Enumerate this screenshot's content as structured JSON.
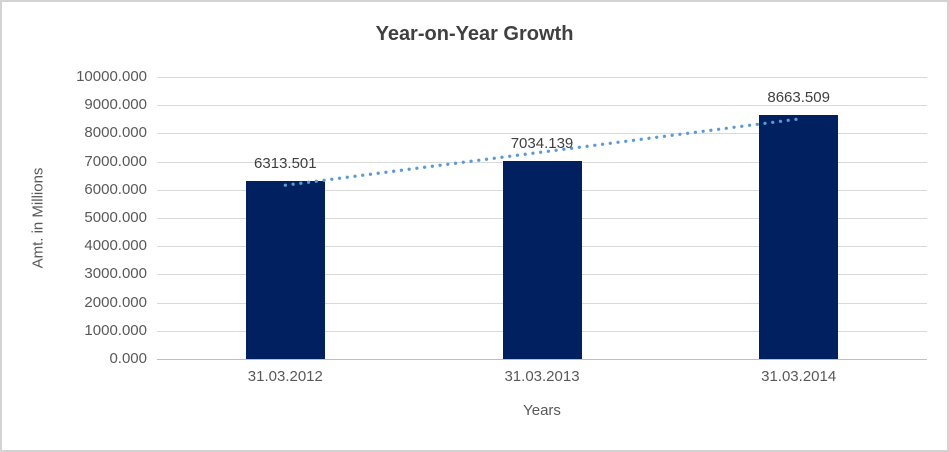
{
  "chart_data": {
    "type": "bar",
    "title": "Year-on-Year Growth",
    "xlabel": "Years",
    "ylabel": "Amt. in Millions",
    "categories": [
      "31.03.2012",
      "31.03.2013",
      "31.03.2014"
    ],
    "values": [
      6313.501,
      7034.139,
      8663.509
    ],
    "value_labels": [
      "6313.501",
      "7034.139",
      "8663.509"
    ],
    "ylim": [
      0,
      10000
    ],
    "ytick_step": 1000,
    "ytick_labels": [
      "0.000",
      "1000.000",
      "2000.000",
      "3000.000",
      "4000.000",
      "5000.000",
      "6000.000",
      "7000.000",
      "8000.000",
      "9000.000",
      "10000.000"
    ],
    "grid": true,
    "legend_position": "none",
    "trendline": {
      "type": "linear",
      "style": "dotted",
      "start_value": 6162.05,
      "end_value": 8512.06
    },
    "colors": {
      "bar": "#002060",
      "trendline": "#5b9bd5",
      "gridline": "#d9d9d9",
      "axis_line": "#bfbfbf",
      "tick_text": "#595959",
      "title_text": "#404040",
      "frame_border": "#d3d3d3",
      "background": "#ffffff"
    }
  }
}
